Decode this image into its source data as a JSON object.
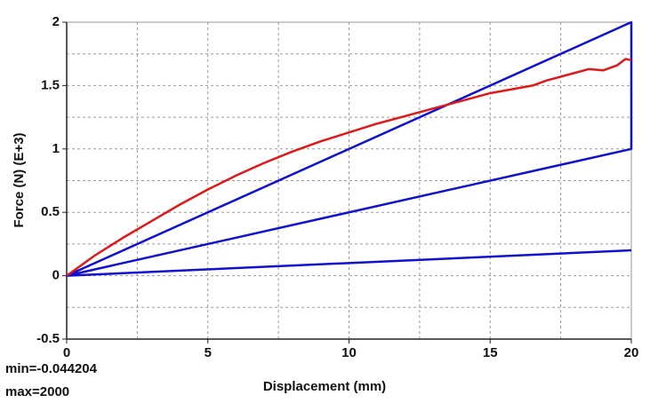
{
  "chart_data": {
    "type": "line",
    "x_label": "Displacement (mm)",
    "y_label": "Force (N) (E+3)",
    "xlim": [
      0,
      20
    ],
    "ylim": [
      -0.5,
      2
    ],
    "xticks": [
      0,
      5,
      10,
      15,
      20
    ],
    "yticks": [
      -0.5,
      0,
      0.5,
      1,
      1.5,
      2
    ],
    "xgrid": [
      2.5,
      5,
      7.5,
      10,
      12.5,
      15,
      17.5
    ],
    "ygrid": [
      -0.25,
      0,
      0.25,
      0.5,
      0.75,
      1,
      1.25,
      1.5,
      1.75
    ],
    "grid": true,
    "annotations": [
      "min=-0.044204",
      "max=2000"
    ],
    "series": [
      {
        "color": "#1010d0",
        "x": [
          0,
          20,
          20,
          0,
          20
        ],
        "values": [
          0,
          2,
          1,
          0,
          0.2
        ]
      },
      {
        "color": "#e01818",
        "x": [
          0,
          1,
          2,
          3,
          4,
          5,
          6,
          7,
          8,
          9,
          10,
          11,
          12,
          13,
          14,
          15,
          16,
          16.5,
          17,
          18,
          18.5,
          19,
          19.5,
          19.8,
          20
        ],
        "values": [
          0,
          0.16,
          0.3,
          0.43,
          0.56,
          0.68,
          0.79,
          0.89,
          0.98,
          1.06,
          1.13,
          1.2,
          1.26,
          1.32,
          1.38,
          1.44,
          1.48,
          1.5,
          1.54,
          1.6,
          1.63,
          1.62,
          1.66,
          1.71,
          1.7
        ]
      }
    ]
  }
}
